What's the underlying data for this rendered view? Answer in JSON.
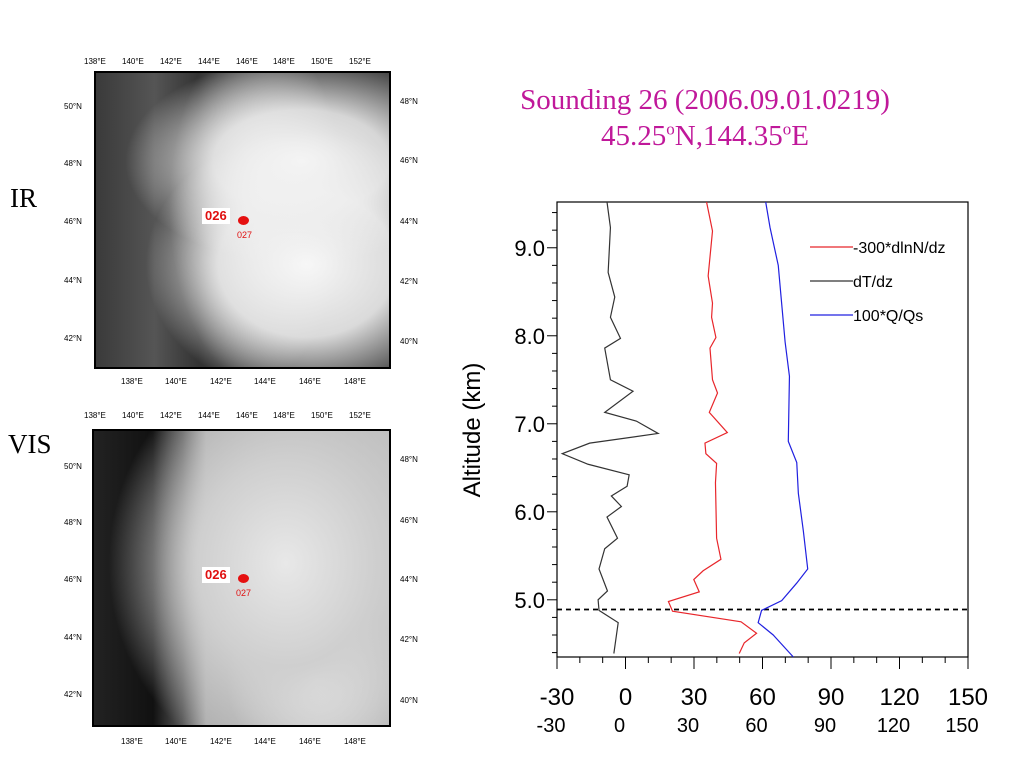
{
  "title": {
    "line1": "Sounding 26 (2006.09.01.0219)",
    "line2_lat": "45.25",
    "line2_lon": "N,144.35",
    "line2_end": "E",
    "degree_mark": "o"
  },
  "panels": [
    {
      "label": "IR",
      "top_ticks": [
        "138°E",
        "140°E",
        "142°E",
        "144°E",
        "146°E",
        "148°E",
        "150°E",
        "152°E"
      ],
      "bottom_ticks": [
        "138°E",
        "140°E",
        "142°E",
        "144°E",
        "146°E",
        "148°E"
      ],
      "left_ticks": [
        "50°N",
        "48°N",
        "46°N",
        "44°N",
        "42°N"
      ],
      "right_ticks": [
        "48°N",
        "46°N",
        "44°N",
        "42°N",
        "40°N"
      ],
      "marker_main": "026",
      "marker_sub": "027"
    },
    {
      "label": "VIS",
      "top_ticks": [
        "138°E",
        "140°E",
        "142°E",
        "144°E",
        "146°E",
        "148°E",
        "150°E",
        "152°E"
      ],
      "bottom_ticks": [
        "138°E",
        "140°E",
        "142°E",
        "144°E",
        "146°E",
        "148°E"
      ],
      "left_ticks": [
        "50°N",
        "48°N",
        "46°N",
        "44°N",
        "42°N"
      ],
      "right_ticks": [
        "48°N",
        "46°N",
        "44°N",
        "42°N",
        "40°N"
      ],
      "marker_main": "026",
      "marker_sub": "027"
    }
  ],
  "colors": {
    "title": "#c0189a",
    "red": "#e8262b",
    "black": "#333333",
    "blue": "#2020e0"
  },
  "chart_data": {
    "type": "line",
    "ylabel": "Altitude (km)",
    "xlim": [
      -30,
      150
    ],
    "ylim": [
      4.35,
      9.52
    ],
    "xticks": [
      -30,
      0,
      30,
      60,
      90,
      120,
      150
    ],
    "xtick_labels_row1": [
      "-30",
      "0",
      "30",
      "60",
      "90",
      "120",
      "150"
    ],
    "xtick_labels_row2": [
      "-30",
      "0",
      "30",
      "60",
      "90",
      "120",
      "150"
    ],
    "yticks": [
      5.0,
      6.0,
      7.0,
      8.0,
      9.0
    ],
    "ytick_labels": [
      "5.0",
      "6.0",
      "7.0",
      "8.0",
      "9.0"
    ],
    "legend_position": "top-right",
    "reference_line": {
      "altitude": 4.89,
      "style": "dashed"
    },
    "series": [
      {
        "name": "-300*dlnN/dz",
        "color": "#e8262b",
        "points": [
          [
            35.5,
            9.52
          ],
          [
            38.1,
            9.19
          ],
          [
            36.2,
            8.68
          ],
          [
            38.1,
            8.37
          ],
          [
            37.7,
            8.21
          ],
          [
            39.6,
            7.98
          ],
          [
            37.0,
            7.86
          ],
          [
            38.1,
            7.5
          ],
          [
            40.3,
            7.35
          ],
          [
            36.7,
            7.13
          ],
          [
            44.6,
            6.9
          ],
          [
            34.8,
            6.78
          ],
          [
            35.2,
            6.66
          ],
          [
            39.9,
            6.55
          ],
          [
            39.4,
            6.33
          ],
          [
            39.9,
            5.7
          ],
          [
            41.8,
            5.46
          ],
          [
            34.0,
            5.33
          ],
          [
            29.9,
            5.23
          ],
          [
            32.3,
            5.09
          ],
          [
            18.8,
            4.98
          ],
          [
            20.6,
            4.87
          ],
          [
            50.6,
            4.75
          ],
          [
            57.4,
            4.62
          ],
          [
            52.0,
            4.51
          ],
          [
            49.8,
            4.39
          ]
        ]
      },
      {
        "name": "dT/dz",
        "color": "#333333",
        "points": [
          [
            -8.1,
            9.52
          ],
          [
            -6.6,
            9.23
          ],
          [
            -7.6,
            8.72
          ],
          [
            -4.7,
            8.44
          ],
          [
            -6.6,
            8.21
          ],
          [
            -2.2,
            7.97
          ],
          [
            -9.1,
            7.86
          ],
          [
            -6.6,
            7.5
          ],
          [
            3.3,
            7.37
          ],
          [
            -9.1,
            7.13
          ],
          [
            4.8,
            7.03
          ],
          [
            14.3,
            6.89
          ],
          [
            -15.7,
            6.78
          ],
          [
            -27.7,
            6.66
          ],
          [
            -16.4,
            6.54
          ],
          [
            1.6,
            6.42
          ],
          [
            0.7,
            6.29
          ],
          [
            -6.2,
            6.18
          ],
          [
            -1.8,
            6.06
          ],
          [
            -8.1,
            5.94
          ],
          [
            -3.5,
            5.7
          ],
          [
            -9.1,
            5.58
          ],
          [
            -11.6,
            5.35
          ],
          [
            -7.9,
            5.1
          ],
          [
            -12.0,
            5.0
          ],
          [
            -11.6,
            4.88
          ],
          [
            -3.2,
            4.74
          ],
          [
            -5.1,
            4.39
          ]
        ]
      },
      {
        "name": "100*Q/Qs",
        "color": "#2020e0",
        "points": [
          [
            61.4,
            9.52
          ],
          [
            63.3,
            9.23
          ],
          [
            66.9,
            8.8
          ],
          [
            68.0,
            8.48
          ],
          [
            69.9,
            7.93
          ],
          [
            71.8,
            7.54
          ],
          [
            71.3,
            6.8
          ],
          [
            75.0,
            6.56
          ],
          [
            75.7,
            6.21
          ],
          [
            77.9,
            5.78
          ],
          [
            79.8,
            5.35
          ],
          [
            75.0,
            5.19
          ],
          [
            68.4,
            4.99
          ],
          [
            59.6,
            4.88
          ],
          [
            58.1,
            4.74
          ],
          [
            64.7,
            4.6
          ],
          [
            73.5,
            4.35
          ]
        ]
      }
    ]
  }
}
